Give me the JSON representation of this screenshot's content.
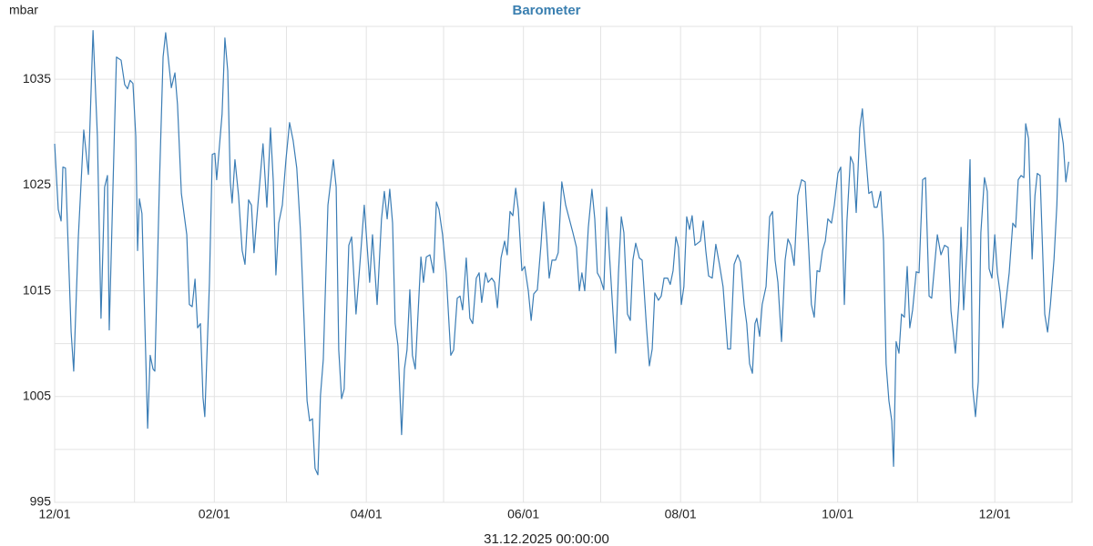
{
  "chart_data": {
    "type": "line",
    "title": "Barometer",
    "y_label": "mbar",
    "x_label": "31.12.2025 00:00:00",
    "color": "#3b7db5",
    "title_color": "#3a7fb0",
    "grid": true,
    "xlim": [
      0,
      395
    ],
    "xticks": [
      {
        "value": 0,
        "label": "12/01"
      },
      {
        "value": 62,
        "label": "02/01"
      },
      {
        "value": 121,
        "label": "04/01"
      },
      {
        "value": 182,
        "label": "06/01"
      },
      {
        "value": 243,
        "label": "08/01"
      },
      {
        "value": 304,
        "label": "10/01"
      },
      {
        "value": 365,
        "label": "12/01"
      }
    ],
    "xminor": [
      31,
      90,
      151,
      212,
      274,
      335
    ],
    "ylim": [
      995,
      1040
    ],
    "yticks": [
      995,
      1005,
      1015,
      1025,
      1035
    ],
    "yminor": [
      1000,
      1010,
      1020,
      1030,
      1040
    ],
    "x": [
      0,
      1.4,
      2.5,
      3.2,
      4.2,
      6.4,
      7.4,
      9.2,
      11.3,
      13.1,
      14.9,
      16.6,
      18,
      19.4,
      20.5,
      21.2,
      23.3,
      24,
      25.8,
      27.2,
      28.3,
      29.3,
      30.4,
      31.5,
      32.2,
      32.9,
      33.9,
      36.1,
      37.1,
      38.2,
      38.9,
      40.7,
      42.1,
      43.1,
      45.3,
      46.7,
      47.7,
      49.2,
      51.3,
      52.3,
      53.4,
      54.5,
      55.5,
      56.6,
      57.6,
      58.3,
      60.1,
      61.2,
      62.2,
      62.9,
      65,
      66.1,
      67.2,
      68.2,
      68.9,
      70,
      71.4,
      72.8,
      73.9,
      75.3,
      76.4,
      77.4,
      78.9,
      80.9,
      82.4,
      83.8,
      84.9,
      85.9,
      87,
      88.4,
      89.8,
      91.2,
      92.6,
      94,
      95.4,
      96.8,
      98,
      99,
      100.1,
      101.1,
      102.2,
      103.2,
      104.3,
      106.1,
      108.2,
      109.3,
      110.3,
      111.4,
      112.4,
      114.2,
      115.3,
      117,
      118.5,
      120.2,
      121.3,
      122.3,
      123.4,
      125.2,
      126.9,
      128,
      129.1,
      130.1,
      131.2,
      132.2,
      133.3,
      134.7,
      135.8,
      136.8,
      137.9,
      138.9,
      140,
      142.2,
      143.2,
      144.3,
      145.7,
      147.1,
      148.2,
      149.2,
      150.6,
      152,
      153.8,
      154.9,
      156.3,
      157.4,
      158.4,
      159.8,
      161.2,
      162.3,
      163.7,
      164.8,
      165.8,
      167.3,
      168.3,
      169.7,
      170.8,
      171.9,
      173.3,
      174.7,
      175.7,
      176.8,
      177.9,
      179,
      180,
      181.4,
      182.5,
      183.9,
      185,
      186,
      187.4,
      188.8,
      189.9,
      191,
      192,
      193.1,
      194.5,
      195.5,
      196.9,
      198.4,
      199.8,
      201.2,
      202.6,
      203.7,
      204.7,
      205.8,
      207.2,
      208.6,
      209.7,
      210.7,
      211.8,
      213.2,
      214.3,
      215.3,
      216.8,
      217.8,
      218.9,
      220,
      221,
      222.4,
      223.5,
      224.5,
      225.6,
      227,
      228.1,
      229.8,
      230.9,
      232,
      233,
      234.4,
      235.5,
      236.6,
      238,
      239,
      240.1,
      241.2,
      242.2,
      243.3,
      244.3,
      245.4,
      246.5,
      247.5,
      248.6,
      250.7,
      251.8,
      252.8,
      253.9,
      255.3,
      256.7,
      258.1,
      259.5,
      261.3,
      262.4,
      263.8,
      265.2,
      266.3,
      267.7,
      268.7,
      269.8,
      270.9,
      271.9,
      272.6,
      273.7,
      274.7,
      276.2,
      277.6,
      278.7,
      279.7,
      280.8,
      282.2,
      283.6,
      284.7,
      285.8,
      287.1,
      288.5,
      290,
      291.4,
      292.8,
      293.8,
      294.9,
      296,
      297,
      298.1,
      299.2,
      300.2,
      301.6,
      302.7,
      304.1,
      305.2,
      306.6,
      307.6,
      309,
      310.1,
      311.2,
      312.6,
      313.6,
      314.7,
      316.1,
      317.2,
      318.2,
      319.3,
      320.7,
      321.8,
      322.8,
      323.9,
      325,
      325.7,
      326.7,
      327.8,
      328.8,
      329.9,
      331,
      332,
      333.1,
      334.5,
      335.6,
      337,
      338.1,
      339.5,
      340.5,
      342.7,
      344.1,
      345.5,
      346.9,
      348,
      349.7,
      351.1,
      351.9,
      352.9,
      354.3,
      355.4,
      356.4,
      357.5,
      358.6,
      359.6,
      361,
      362.1,
      362.8,
      363.9,
      365,
      366,
      367.1,
      368.1,
      369.2,
      370.6,
      372,
      373.1,
      374.1,
      375.2,
      376.3,
      377,
      378.1,
      379.5,
      380.6,
      381.5,
      382.6,
      384.4,
      385.5,
      386.6,
      388,
      389.1,
      390.1,
      391.6,
      392.6,
      393.7
    ],
    "values": [
      1028.9,
      1022.7,
      1021.6,
      1026.7,
      1026.6,
      1011.1,
      1007.4,
      1020.1,
      1030.2,
      1026.0,
      1039.6,
      1029.6,
      1012.4,
      1024.8,
      1025.9,
      1011.3,
      1030.9,
      1037.1,
      1036.8,
      1034.5,
      1034.1,
      1034.9,
      1034.6,
      1029.6,
      1018.8,
      1023.7,
      1022.3,
      1002.0,
      1008.9,
      1007.6,
      1007.4,
      1025.3,
      1037.1,
      1039.4,
      1034.2,
      1035.6,
      1032.6,
      1024.2,
      1020.3,
      1013.7,
      1013.5,
      1016.1,
      1011.5,
      1011.9,
      1004.9,
      1003.1,
      1015.8,
      1027.9,
      1028.0,
      1025.5,
      1031.7,
      1038.9,
      1035.8,
      1025.3,
      1023.3,
      1027.4,
      1024.0,
      1018.8,
      1017.5,
      1023.6,
      1023.1,
      1018.6,
      1023.1,
      1028.9,
      1022.9,
      1030.4,
      1025.3,
      1016.5,
      1021.4,
      1023.1,
      1027.4,
      1030.9,
      1029.2,
      1026.6,
      1020.8,
      1012.4,
      1004.6,
      1002.7,
      1002.9,
      998.2,
      997.6,
      1005.1,
      1008.5,
      1023.1,
      1027.4,
      1024.8,
      1009.4,
      1004.8,
      1005.7,
      1019.3,
      1020.1,
      1012.8,
      1017.5,
      1023.1,
      1019.3,
      1015.8,
      1020.3,
      1013.7,
      1021.8,
      1024.4,
      1021.8,
      1024.6,
      1021.4,
      1011.9,
      1009.8,
      1001.4,
      1007.6,
      1009.4,
      1015.1,
      1008.9,
      1007.6,
      1018.2,
      1015.8,
      1018.2,
      1018.4,
      1016.7,
      1023.4,
      1022.7,
      1020.3,
      1016.7,
      1008.9,
      1009.4,
      1014.3,
      1014.5,
      1013.2,
      1018.1,
      1012.4,
      1011.9,
      1016.2,
      1016.7,
      1013.9,
      1016.7,
      1015.8,
      1016.2,
      1015.8,
      1013.4,
      1018.1,
      1019.7,
      1018.4,
      1022.5,
      1022.1,
      1024.7,
      1022.7,
      1016.9,
      1017.3,
      1015.0,
      1012.2,
      1014.7,
      1015.1,
      1019.3,
      1023.4,
      1020.1,
      1016.2,
      1017.9,
      1017.9,
      1018.6,
      1025.3,
      1023.1,
      1021.8,
      1020.5,
      1019.1,
      1015.0,
      1016.7,
      1015.0,
      1021.0,
      1024.6,
      1021.8,
      1016.7,
      1016.2,
      1015.1,
      1022.9,
      1018.8,
      1012.8,
      1009.1,
      1016.7,
      1022.0,
      1020.5,
      1012.8,
      1012.2,
      1017.9,
      1019.5,
      1018.1,
      1017.9,
      1011.5,
      1007.9,
      1009.5,
      1014.8,
      1014.1,
      1014.5,
      1016.2,
      1016.2,
      1015.6,
      1016.9,
      1020.1,
      1019.1,
      1013.7,
      1015.4,
      1022.0,
      1020.8,
      1022.1,
      1019.3,
      1019.7,
      1021.6,
      1018.8,
      1016.4,
      1016.2,
      1019.4,
      1017.5,
      1015.4,
      1009.5,
      1009.5,
      1017.5,
      1018.4,
      1017.7,
      1013.7,
      1011.9,
      1008.1,
      1007.2,
      1011.9,
      1012.4,
      1010.7,
      1013.7,
      1015.4,
      1022.0,
      1022.5,
      1017.9,
      1015.8,
      1010.2,
      1017.9,
      1019.9,
      1019.3,
      1017.4,
      1024.0,
      1025.5,
      1025.3,
      1018.8,
      1013.7,
      1012.5,
      1016.9,
      1016.8,
      1018.8,
      1019.7,
      1021.8,
      1021.4,
      1023.1,
      1026.1,
      1026.7,
      1013.7,
      1021.6,
      1027.7,
      1027.0,
      1022.4,
      1030.4,
      1032.2,
      1028.5,
      1024.2,
      1024.4,
      1022.9,
      1022.9,
      1024.4,
      1019.7,
      1008.1,
      1004.6,
      1002.7,
      998.4,
      1010.2,
      1009.1,
      1012.8,
      1012.5,
      1017.3,
      1011.5,
      1013.2,
      1016.8,
      1016.7,
      1025.5,
      1025.7,
      1014.5,
      1014.3,
      1020.3,
      1018.4,
      1019.3,
      1019.1,
      1013.1,
      1009.1,
      1014.1,
      1021.0,
      1013.2,
      1019.3,
      1027.4,
      1005.9,
      1003.1,
      1006.4,
      1020.5,
      1025.7,
      1024.4,
      1017.1,
      1016.2,
      1020.3,
      1016.7,
      1014.8,
      1011.5,
      1013.7,
      1016.7,
      1021.4,
      1021.0,
      1025.5,
      1025.9,
      1025.7,
      1030.8,
      1029.4,
      1018.0,
      1024.0,
      1026.1,
      1025.9,
      1012.8,
      1011.1,
      1013.7,
      1018.0,
      1023.1,
      1031.3,
      1028.9,
      1025.3,
      1027.2
    ]
  }
}
